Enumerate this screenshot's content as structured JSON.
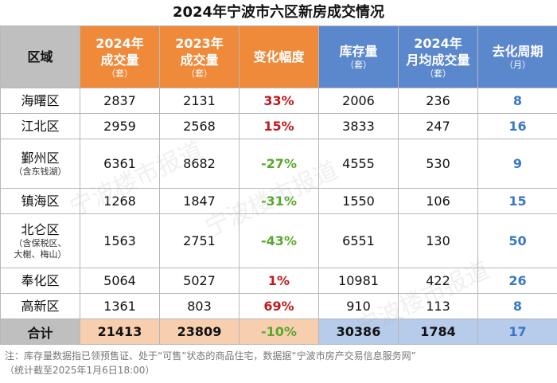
{
  "title": "2024年宁波市六区新房成交情况",
  "headers": {
    "region": "区域",
    "sales2024": {
      "main1": "2024年",
      "main2": "成交量",
      "unit": "（套）"
    },
    "sales2023": {
      "main1": "2023年",
      "main2": "成交量",
      "unit": "（套）"
    },
    "change": "变化幅度",
    "inventory": {
      "main1": "库存量",
      "unit": "（套）"
    },
    "monthly": {
      "main1": "2024年",
      "main2": "月均成交量",
      "unit": "（套）"
    },
    "cycle": {
      "main1": "去化周期",
      "unit": "（月）"
    }
  },
  "rows": [
    {
      "region": "海曙区",
      "note": "",
      "sales2024": "2837",
      "sales2023": "2131",
      "change": "33%",
      "inventory": "2006",
      "monthly": "236",
      "cycle": "8"
    },
    {
      "region": "江北区",
      "note": "",
      "sales2024": "2959",
      "sales2023": "2568",
      "change": "15%",
      "inventory": "3833",
      "monthly": "247",
      "cycle": "16"
    },
    {
      "region": "鄞州区",
      "note": "（含东钱湖）",
      "sales2024": "6361",
      "sales2023": "8682",
      "change": "-27%",
      "inventory": "4555",
      "monthly": "530",
      "cycle": "9"
    },
    {
      "region": "镇海区",
      "note": "",
      "sales2024": "1268",
      "sales2023": "1847",
      "change": "-31%",
      "inventory": "1550",
      "monthly": "106",
      "cycle": "15"
    },
    {
      "region": "北仑区",
      "note": "（含保税区、",
      "note2": "大榭、梅山）",
      "sales2024": "1563",
      "sales2023": "2751",
      "change": "-43%",
      "inventory": "6551",
      "monthly": "130",
      "cycle": "50"
    },
    {
      "region": "奉化区",
      "note": "",
      "sales2024": "5064",
      "sales2023": "5027",
      "change": "1%",
      "inventory": "10981",
      "monthly": "422",
      "cycle": "26"
    },
    {
      "region": "高新区",
      "note": "",
      "sales2024": "1361",
      "sales2023": "803",
      "change": "69%",
      "inventory": "910",
      "monthly": "113",
      "cycle": "8"
    }
  ],
  "total": {
    "label": "合计",
    "sales2024": "21413",
    "sales2023": "23809",
    "change": "-10%",
    "inventory": "30386",
    "monthly": "1784",
    "cycle": "17"
  },
  "footnote": {
    "line1": "注：库存量数据指已领预售证、处于“可售”状态的商品住宅，数据据“宁波市房产交易信息服务网”",
    "line2": "（统计截至2025年1月6日18:00）"
  },
  "watermark": "宁波楼市报道"
}
